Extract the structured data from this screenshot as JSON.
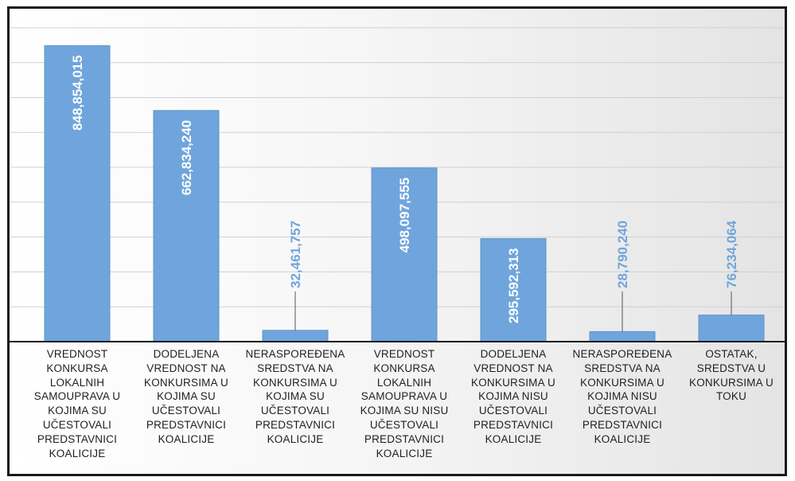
{
  "chart_data": {
    "type": "bar",
    "title": "",
    "xlabel": "",
    "ylabel": "",
    "ylim": [
      0,
      950000000
    ],
    "grid": true,
    "legend": "none",
    "colors": {
      "bar": "#6fa5dc",
      "bar_edge": "#5f95cc",
      "label_inside": "#ffffff",
      "label_outside": "#6fa5dc",
      "grid": "#d0d0d0",
      "axis": "#1a1a1a"
    },
    "categories": [
      "VREDNOST KONKURSA LOKALNIH SAMOUPRAVA U KOJIMA SU UČESTOVALI PREDSTAVNICI KOALICIJE",
      "DODELJENA VREDNOST NA KONKURSIMA U KOJIMA SU UČESTOVALI PREDSTAVNICI KOALICIJE",
      "NERASPOREĐENA SREDSTVA NA KONKURSIMA U KOJIMA SU UČESTOVALI PREDSTAVNICI KOALICIJE",
      "VREDNOST KONKURSA LOKALNIH SAMOUPRAVA U KOJIMA SU NISU UČESTOVALI PREDSTAVNICI KOALICIJE",
      "DODELJENA VREDNOST NA KONKURSIMA U KOJIMA NISU UČESTOVALI PREDSTAVNICI KOALICIJE",
      "NERASPOREĐENA SREDSTVA NA KONKURSIMA U KOJIMA NISU UČESTOVALI PREDSTAVNICI KOALICIJE",
      "OSTATAK, SREDSTVA U KONKURSIMA U TOKU"
    ],
    "values": [
      848854015,
      662834240,
      32461757,
      498097555,
      295592313,
      28790240,
      76234064
    ],
    "data_labels": [
      "848,854,015",
      "662,834,240",
      "32,461,757",
      "498,097,555",
      "295,592,313",
      "28,790,240",
      "76,234,064"
    ]
  }
}
